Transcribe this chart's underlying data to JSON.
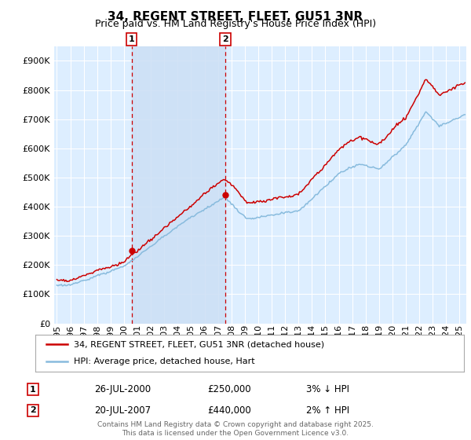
{
  "title": "34, REGENT STREET, FLEET, GU51 3NR",
  "subtitle": "Price paid vs. HM Land Registry's House Price Index (HPI)",
  "ylabel_ticks": [
    "£0",
    "£100K",
    "£200K",
    "£300K",
    "£400K",
    "£500K",
    "£600K",
    "£700K",
    "£800K",
    "£900K"
  ],
  "ytick_vals": [
    0,
    100000,
    200000,
    300000,
    400000,
    500000,
    600000,
    700000,
    800000,
    900000
  ],
  "ylim": [
    0,
    950000
  ],
  "xlim_start": 1994.8,
  "xlim_end": 2025.5,
  "sale1_x": 2000.57,
  "sale1_y": 250000,
  "sale1_label": "1",
  "sale2_x": 2007.55,
  "sale2_y": 440000,
  "sale2_label": "2",
  "vline1_x": 2000.57,
  "vline2_x": 2007.55,
  "line_color_price": "#cc0000",
  "line_color_hpi": "#88bbdd",
  "background_color": "#ffffff",
  "plot_bg_color": "#ddeeff",
  "shade_color": "#ccdff5",
  "grid_color": "#ffffff",
  "legend_label_price": "34, REGENT STREET, FLEET, GU51 3NR (detached house)",
  "legend_label_hpi": "HPI: Average price, detached house, Hart",
  "annotation1_date": "26-JUL-2000",
  "annotation1_price": "£250,000",
  "annotation1_hpi": "3% ↓ HPI",
  "annotation2_date": "20-JUL-2007",
  "annotation2_price": "£440,000",
  "annotation2_hpi": "2% ↑ HPI",
  "footer": "Contains HM Land Registry data © Crown copyright and database right 2025.\nThis data is licensed under the Open Government Licence v3.0.",
  "title_fontsize": 11,
  "subtitle_fontsize": 9,
  "tick_fontsize": 8,
  "legend_fontsize": 8,
  "annotation_fontsize": 8.5,
  "footer_fontsize": 6.5
}
